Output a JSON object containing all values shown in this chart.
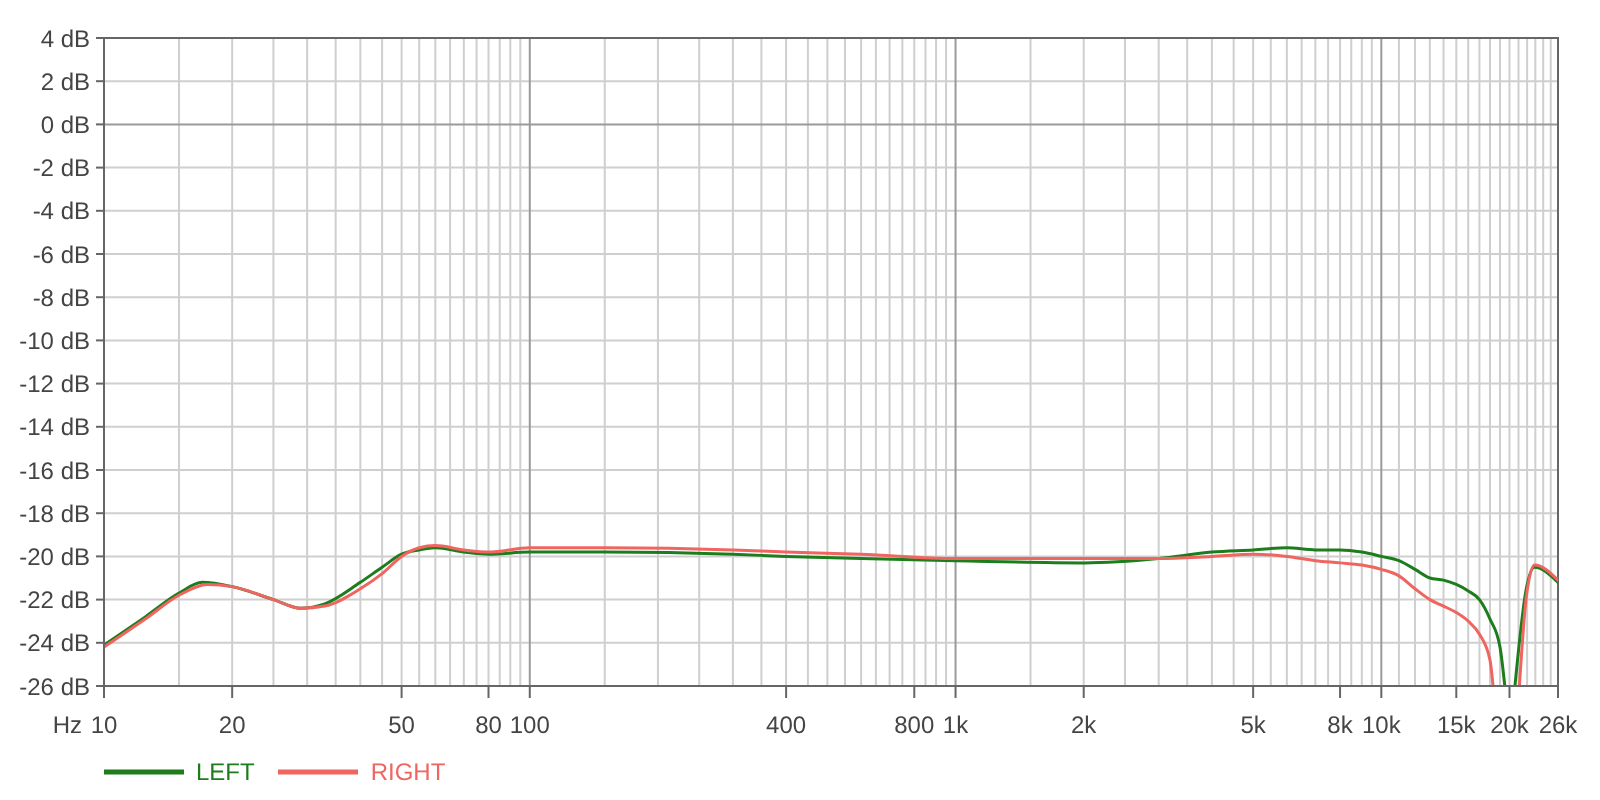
{
  "chart_data": {
    "type": "line",
    "xlabel": "Hz",
    "log": "x",
    "grid": true,
    "legend": "bottom left",
    "xlim": [
      10,
      26000
    ],
    "ylim": [
      -26,
      4
    ],
    "xticks": [
      10,
      {
        "value": 15,
        "label": null
      },
      20,
      {
        "value": 25,
        "label": null
      },
      {
        "value": 30,
        "label": null
      },
      {
        "value": 35,
        "label": null
      },
      {
        "value": 40,
        "label": null
      },
      {
        "value": 45,
        "label": null
      },
      50,
      {
        "value": 55,
        "label": null
      },
      {
        "value": 60,
        "label": null
      },
      {
        "value": 65,
        "label": null
      },
      {
        "value": 70,
        "label": null
      },
      {
        "value": 75,
        "label": null
      },
      80,
      {
        "value": 85,
        "label": null
      },
      {
        "value": 90,
        "label": null
      },
      {
        "value": 95,
        "label": null
      },
      100,
      {
        "value": 150,
        "label": null
      },
      {
        "value": 200,
        "label": null
      },
      {
        "value": 250,
        "label": null
      },
      {
        "value": 300,
        "label": null
      },
      {
        "value": 350,
        "label": null
      },
      400,
      {
        "value": 450,
        "label": null
      },
      {
        "value": 500,
        "label": null
      },
      {
        "value": 550,
        "label": null
      },
      {
        "value": 600,
        "label": null
      },
      {
        "value": 650,
        "label": null
      },
      {
        "value": 700,
        "label": null
      },
      {
        "value": 750,
        "label": null
      },
      800,
      {
        "value": 850,
        "label": null
      },
      {
        "value": 900,
        "label": null
      },
      {
        "value": 950,
        "label": null
      },
      {
        "value": 1000,
        "label": "1k"
      },
      {
        "value": 1500,
        "label": null
      },
      {
        "value": 2000,
        "label": "2k"
      },
      {
        "value": 2500,
        "label": null
      },
      {
        "value": 3000,
        "label": null
      },
      {
        "value": 3500,
        "label": null
      },
      {
        "value": 4000,
        "label": null
      },
      {
        "value": 4500,
        "label": null
      },
      {
        "value": 5000,
        "label": "5k"
      },
      {
        "value": 5500,
        "label": null
      },
      {
        "value": 6000,
        "label": null
      },
      {
        "value": 6500,
        "label": null
      },
      {
        "value": 7000,
        "label": null
      },
      {
        "value": 7500,
        "label": null
      },
      {
        "value": 8000,
        "label": "8k"
      },
      {
        "value": 8500,
        "label": null
      },
      {
        "value": 9000,
        "label": null
      },
      {
        "value": 9500,
        "label": null
      },
      {
        "value": 10000,
        "label": "10k"
      },
      {
        "value": 11000,
        "label": null
      },
      {
        "value": 12000,
        "label": null
      },
      {
        "value": 13000,
        "label": null
      },
      {
        "value": 14000,
        "label": null
      },
      {
        "value": 15000,
        "label": "15k"
      },
      {
        "value": 16000,
        "label": null
      },
      {
        "value": 17000,
        "label": null
      },
      {
        "value": 18000,
        "label": null
      },
      {
        "value": 19000,
        "label": null
      },
      {
        "value": 20000,
        "label": "20k"
      },
      {
        "value": 21000,
        "label": null
      },
      {
        "value": 22000,
        "label": null
      },
      {
        "value": 23000,
        "label": null
      },
      {
        "value": 24000,
        "label": null
      },
      {
        "value": 25000,
        "label": null
      },
      {
        "value": 26000,
        "label": "26k"
      }
    ],
    "yticks": [
      {
        "value": 4,
        "label": "4 dB"
      },
      {
        "value": 2,
        "label": "2 dB"
      },
      {
        "value": 0,
        "label": "0 dB"
      },
      {
        "value": -2,
        "label": "-2 dB"
      },
      {
        "value": -4,
        "label": "-4 dB"
      },
      {
        "value": -6,
        "label": "-6 dB"
      },
      {
        "value": -8,
        "label": "-8 dB"
      },
      {
        "value": -10,
        "label": "-10 dB"
      },
      {
        "value": -12,
        "label": "-12 dB"
      },
      {
        "value": -14,
        "label": "-14 dB"
      },
      {
        "value": -16,
        "label": "-16 dB"
      },
      {
        "value": -18,
        "label": "-18 dB"
      },
      {
        "value": -20,
        "label": "-20 dB"
      },
      {
        "value": -22,
        "label": "-22 dB"
      },
      {
        "value": -24,
        "label": "-24 dB"
      },
      {
        "value": -26,
        "label": "-26 dB"
      }
    ],
    "series": [
      {
        "name": "LEFT",
        "color": "#1d7d1d",
        "x": [
          10,
          12.5,
          15,
          17,
          20,
          25,
          29,
          33,
          40,
          45,
          50,
          55,
          60,
          70,
          80,
          100,
          150,
          300,
          400,
          600,
          1000,
          2000,
          3000,
          4000,
          5000,
          6000,
          7000,
          8000,
          9000,
          10000,
          11000,
          12000,
          13000,
          14000,
          15000,
          16000,
          17000,
          18000,
          19000,
          19500,
          20000,
          20600,
          21900,
          22900,
          26000
        ],
        "values": [
          -24.1,
          -22.8,
          -21.7,
          -21.2,
          -21.4,
          -22.0,
          -22.4,
          -22.2,
          -21.2,
          -20.5,
          -19.9,
          -19.7,
          -19.6,
          -19.8,
          -19.9,
          -19.8,
          -19.8,
          -19.9,
          -20.0,
          -20.1,
          -20.2,
          -20.3,
          -20.1,
          -19.8,
          -19.7,
          -19.6,
          -19.7,
          -19.7,
          -19.8,
          -20.0,
          -20.2,
          -20.6,
          -21.0,
          -21.1,
          -21.3,
          -21.6,
          -22.0,
          -22.9,
          -24.2,
          -26.0,
          null,
          -26.0,
          -21.5,
          -20.5,
          -21.2
        ]
      },
      {
        "name": "RIGHT",
        "color": "#ef6560",
        "x": [
          10,
          12.5,
          15,
          17.5,
          20,
          25,
          29,
          33,
          40,
          45,
          50,
          55,
          60,
          70,
          80,
          100,
          150,
          300,
          400,
          600,
          1000,
          2000,
          3000,
          4000,
          5000,
          6000,
          7000,
          8000,
          9000,
          10000,
          11000,
          12000,
          13000,
          14000,
          15000,
          16000,
          17000,
          18000,
          18300,
          20000,
          21100,
          21900,
          22900,
          26000
        ],
        "values": [
          -24.2,
          -22.9,
          -21.8,
          -21.3,
          -21.4,
          -22.0,
          -22.4,
          -22.3,
          -21.5,
          -20.8,
          -20.0,
          -19.6,
          -19.5,
          -19.7,
          -19.8,
          -19.6,
          -19.6,
          -19.7,
          -19.8,
          -19.9,
          -20.1,
          -20.1,
          -20.1,
          -20.0,
          -19.9,
          -20.0,
          -20.2,
          -20.3,
          -20.4,
          -20.6,
          -20.9,
          -21.5,
          -22.0,
          -22.3,
          -22.6,
          -23.0,
          -23.6,
          -24.8,
          -26.0,
          null,
          -26.0,
          -21.9,
          -20.4,
          -21.1
        ]
      }
    ]
  }
}
